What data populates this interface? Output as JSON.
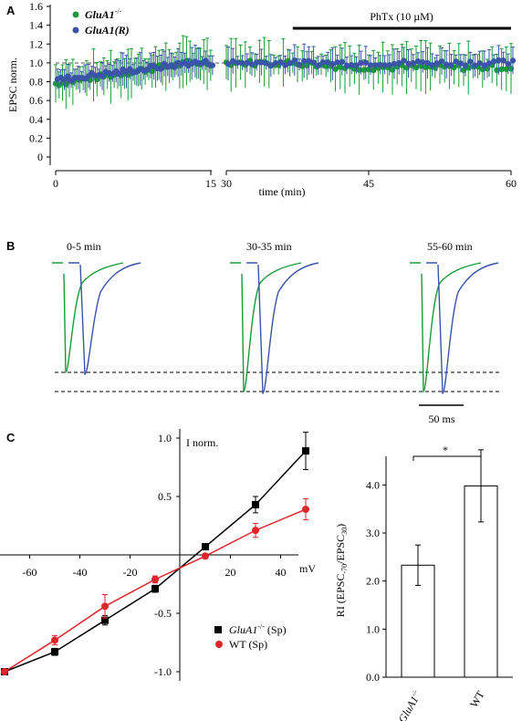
{
  "colors": {
    "green": "#1a9a3a",
    "blue": "#3a55a8",
    "red": "#e0252b",
    "black": "#000000"
  },
  "chart_data": [
    {
      "panel": "A",
      "type": "scatter",
      "ylabel": "EPSC  norm.",
      "xlabel": "time (min)",
      "ylim": [
        0,
        1.6
      ],
      "yticks": [
        "0",
        "0.2",
        "0.4",
        "0.6",
        "0.8",
        "1.0",
        "1.2",
        "1.4",
        "1.6"
      ],
      "xticks_left": [
        "0",
        "15"
      ],
      "xticks_right": [
        "30",
        "45",
        "60"
      ],
      "xlim_left": [
        0,
        15
      ],
      "xlim_right": [
        30,
        60
      ],
      "annotation": "PhTx (10 µM)",
      "annotation_range": [
        37,
        60
      ],
      "series": [
        {
          "name": "GluA1",
          "superscript": "-/-",
          "color": "green"
        },
        {
          "name": "GluA1(R)",
          "superscript": "",
          "color": "blue"
        }
      ]
    },
    {
      "panel": "B",
      "type": "line",
      "segments": [
        "0-5 min",
        "30-35 min",
        "55-60 min"
      ],
      "scalebar": "50 ms"
    },
    {
      "panel": "C-left",
      "type": "line",
      "ylabel": "I norm.",
      "xlabel": "mV",
      "xlim": [
        -70,
        50
      ],
      "ylim": [
        -1.0,
        1.0
      ],
      "xticks": [
        "-60",
        "-40",
        "-20",
        "20",
        "40"
      ],
      "yticks": [
        "1.0",
        "0.5",
        "-0.5",
        "-1.0"
      ],
      "x": [
        -70,
        -50,
        -30,
        -10,
        10,
        30,
        50
      ],
      "series": [
        {
          "name": "GluA1",
          "superscript": "-/-",
          "suffix": " (Sp)",
          "color": "black",
          "values": [
            -1.0,
            -0.83,
            -0.56,
            -0.29,
            0.07,
            0.43,
            0.89
          ],
          "errors": [
            0.0,
            0.03,
            0.04,
            0.03,
            0.02,
            0.07,
            0.16
          ]
        },
        {
          "name": "WT (Sp)",
          "superscript": "",
          "suffix": "",
          "color": "red",
          "values": [
            -1.0,
            -0.73,
            -0.44,
            -0.21,
            -0.01,
            0.21,
            0.39
          ],
          "errors": [
            0.0,
            0.04,
            0.1,
            0.03,
            0.02,
            0.06,
            0.09
          ]
        }
      ]
    },
    {
      "panel": "C-right",
      "type": "bar",
      "ylabel": "RI (EPSC-70/EPSC30)",
      "ylim": [
        0,
        4.5
      ],
      "yticks": [
        "0.0",
        "1.0",
        "2.0",
        "3.0",
        "4.0"
      ],
      "categories": [
        "GluA1",
        "WT"
      ],
      "category_superscripts": [
        "-/-",
        ""
      ],
      "values": [
        2.33,
        3.98
      ],
      "errors": [
        0.42,
        0.75
      ],
      "significance": "*"
    }
  ]
}
